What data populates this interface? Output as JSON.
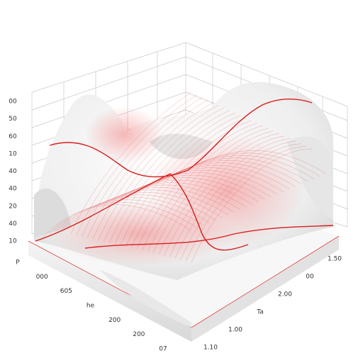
{
  "left_axis_labels": [
    "00",
    "50",
    "60",
    "10",
    "40",
    "40",
    "20",
    "40",
    "10"
  ],
  "front_axis_labels": [
    "P",
    "000",
    "605",
    "he",
    "200",
    "200",
    "07"
  ],
  "right_axis_labels": [
    "1.10",
    "1.00",
    "Ta",
    "2.00",
    "00",
    "1.50"
  ]
}
